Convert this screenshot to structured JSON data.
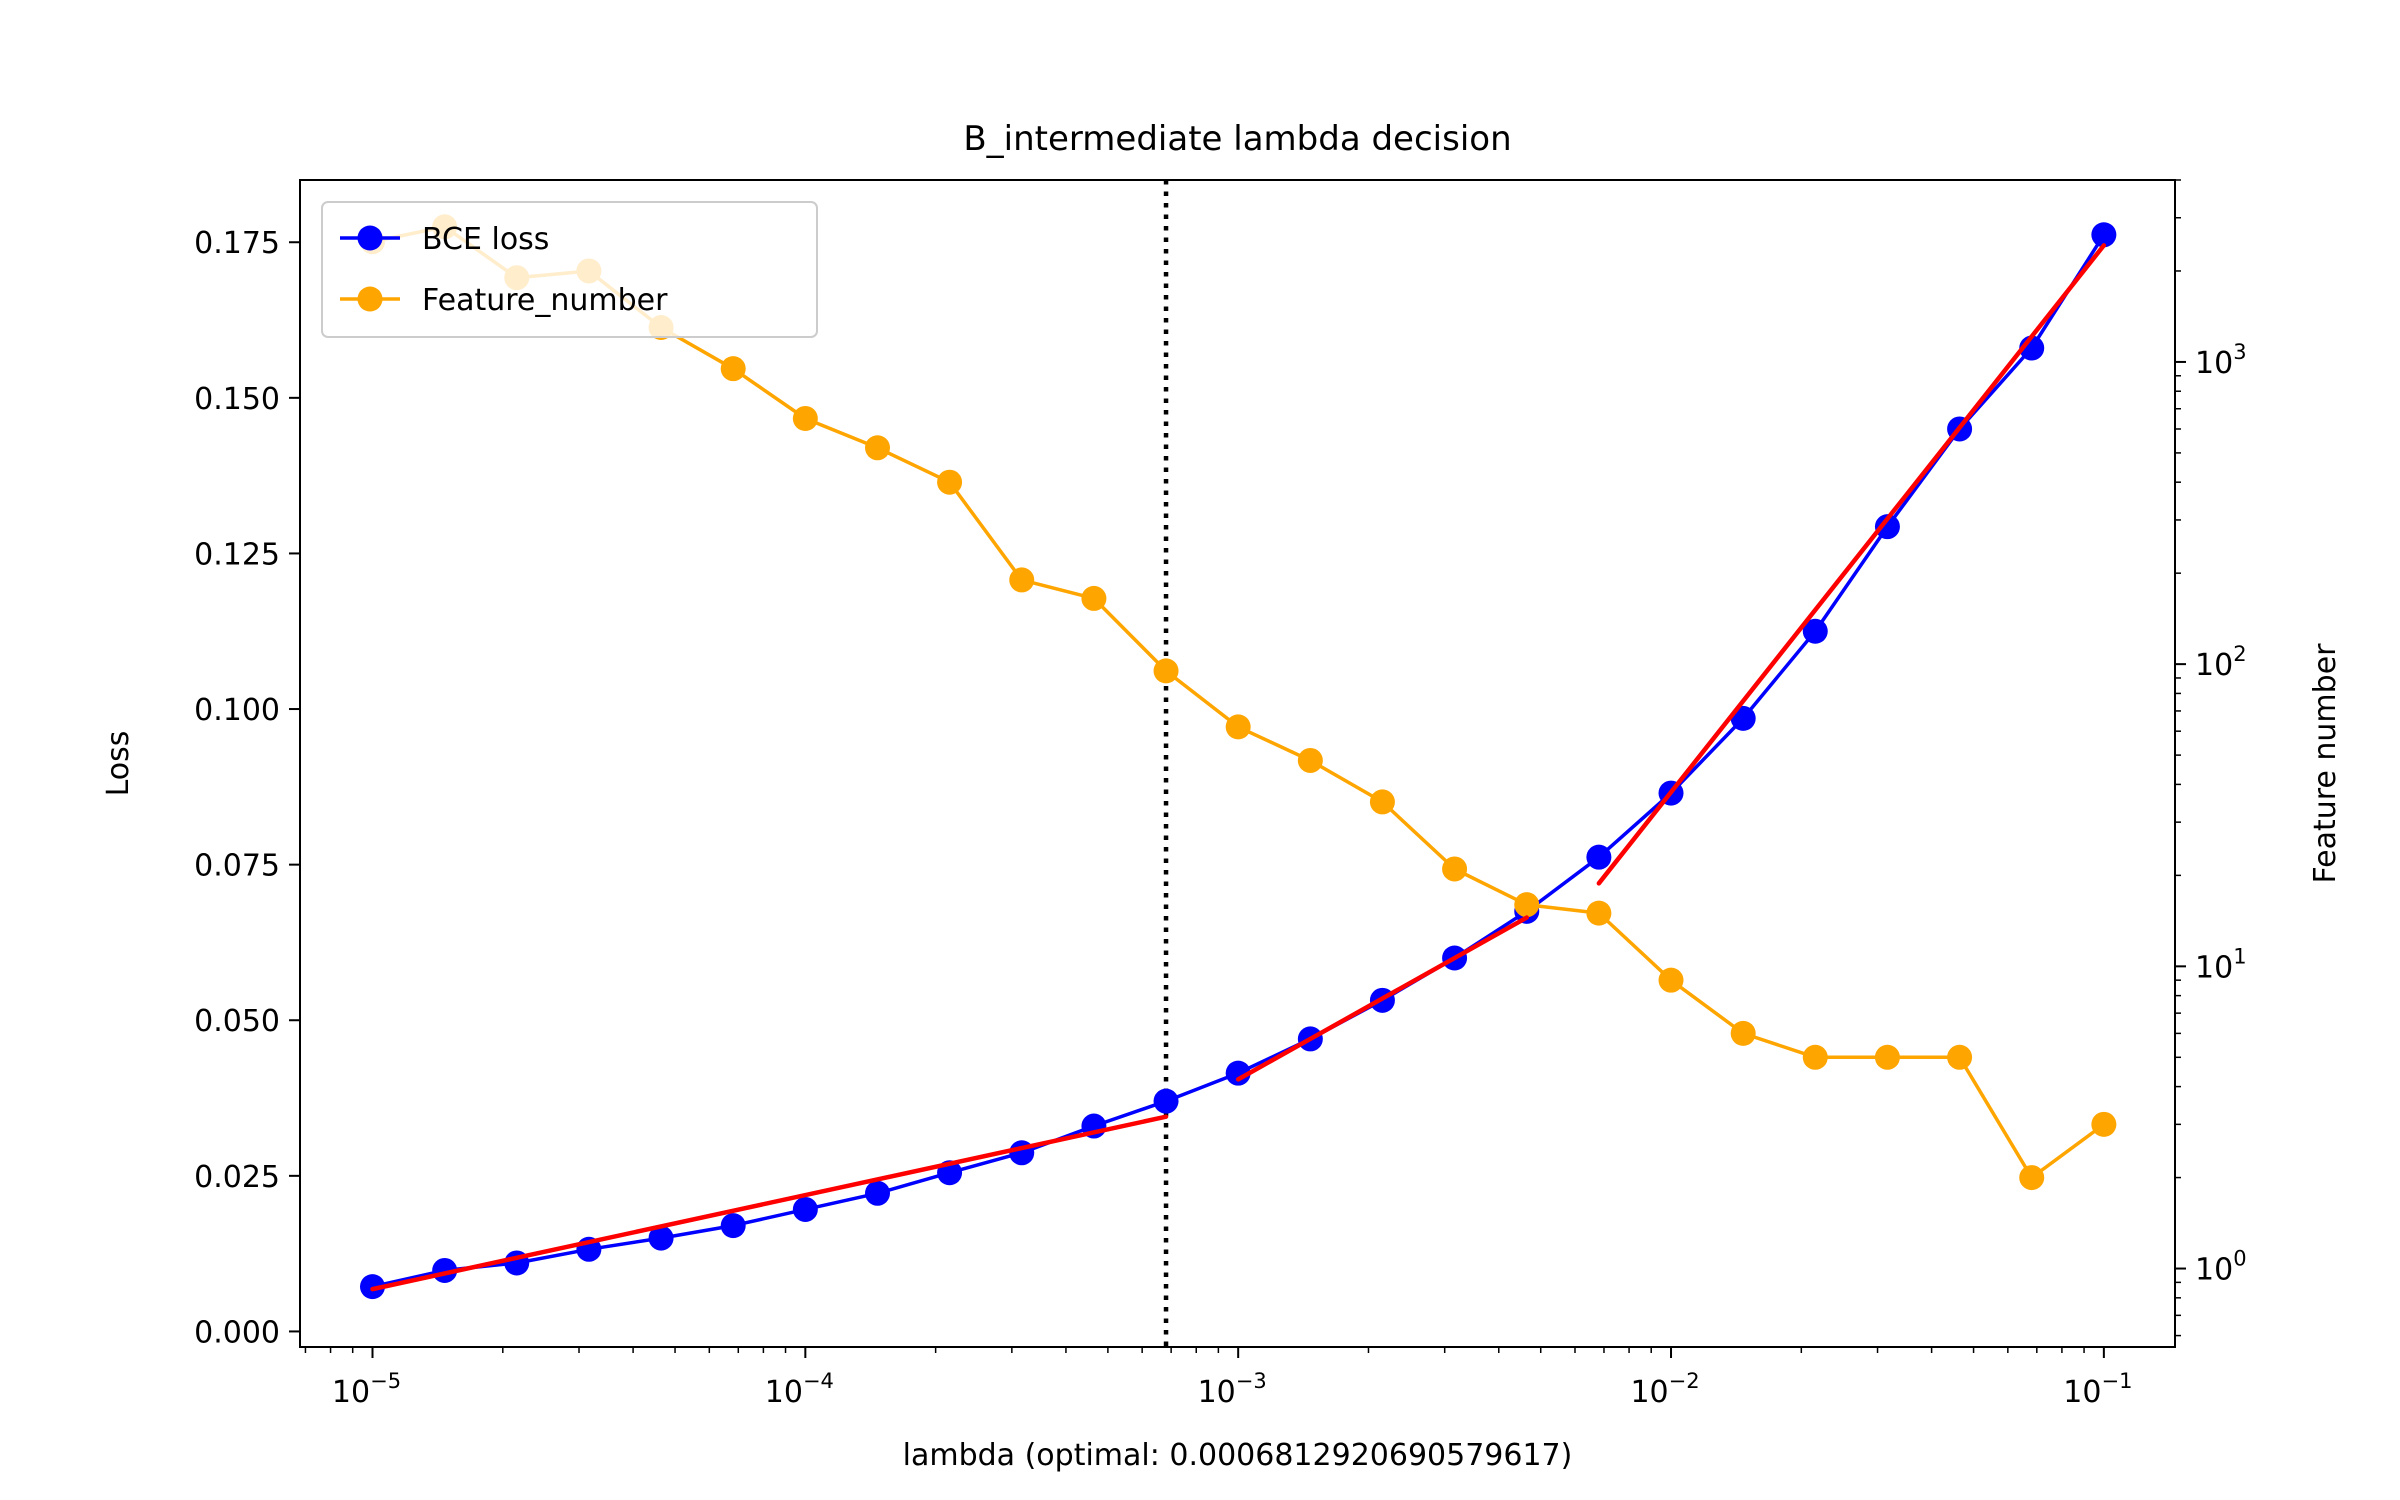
{
  "chart_data": {
    "type": "line",
    "title": "B_intermediate lambda decision",
    "xlabel": "lambda (optimal: 0.0006812920690579617)",
    "ylabel_left": "Loss",
    "ylabel_right": "Feature number",
    "x_scale": "log",
    "xlim": [
      6.8e-06,
      0.146
    ],
    "ylim_left": [
      -0.0025,
      0.185
    ],
    "ylim_right": [
      0.55,
      4000
    ],
    "y_right_scale": "log",
    "optimal_lambda": 0.0006812920690579617,
    "legend_position": "upper left",
    "x_ticks": [
      {
        "value": 1e-05,
        "base": "10",
        "exp": "−5"
      },
      {
        "value": 0.0001,
        "base": "10",
        "exp": "−4"
      },
      {
        "value": 0.001,
        "base": "10",
        "exp": "−3"
      },
      {
        "value": 0.01,
        "base": "10",
        "exp": "−2"
      },
      {
        "value": 0.1,
        "base": "10",
        "exp": "−1"
      }
    ],
    "y_left_ticks": [
      {
        "value": 0.0,
        "label": "0.000"
      },
      {
        "value": 0.025,
        "label": "0.025"
      },
      {
        "value": 0.05,
        "label": "0.050"
      },
      {
        "value": 0.075,
        "label": "0.075"
      },
      {
        "value": 0.1,
        "label": "0.100"
      },
      {
        "value": 0.125,
        "label": "0.125"
      },
      {
        "value": 0.15,
        "label": "0.150"
      },
      {
        "value": 0.175,
        "label": "0.175"
      }
    ],
    "y_right_ticks": [
      {
        "value": 1,
        "base": "10",
        "exp": "0"
      },
      {
        "value": 10,
        "base": "10",
        "exp": "1"
      },
      {
        "value": 100,
        "base": "10",
        "exp": "2"
      },
      {
        "value": 1000,
        "base": "10",
        "exp": "3"
      }
    ],
    "x": [
      1e-05,
      1.468e-05,
      2.154e-05,
      3.162e-05,
      4.642e-05,
      6.813e-05,
      0.0001,
      0.0001468,
      0.0002154,
      0.0003162,
      0.0004642,
      0.0006813,
      0.001,
      0.001468,
      0.002154,
      0.003162,
      0.004642,
      0.006813,
      0.01,
      0.01468,
      0.02154,
      0.03162,
      0.04642,
      0.06813,
      0.1
    ],
    "series": [
      {
        "name": "BCE loss",
        "axis": "left",
        "color": "#0000ff",
        "values": [
          0.0072,
          0.0098,
          0.011,
          0.0132,
          0.015,
          0.017,
          0.0196,
          0.0222,
          0.0255,
          0.0287,
          0.033,
          0.037,
          0.0415,
          0.047,
          0.0532,
          0.06,
          0.0675,
          0.0762,
          0.0865,
          0.0985,
          0.1125,
          0.1293,
          0.145,
          0.158,
          0.1762
        ]
      },
      {
        "name": "Feature_number",
        "axis": "right",
        "color": "#ffa500",
        "values": [
          2500,
          2800,
          1900,
          2000,
          1300,
          950,
          650,
          520,
          400,
          190,
          165,
          95,
          62,
          48,
          35,
          21,
          16,
          15,
          9,
          6,
          5,
          5,
          5,
          2,
          3
        ]
      }
    ],
    "fit_lines": {
      "color": "#ff0000",
      "segments": [
        {
          "x": [
            1e-05,
            0.0006813
          ],
          "y": [
            0.0068,
            0.0345
          ]
        },
        {
          "x": [
            0.001,
            0.004642
          ],
          "y": [
            0.0405,
            0.0665
          ]
        },
        {
          "x": [
            0.006813,
            0.1
          ],
          "y": [
            0.072,
            0.1745
          ]
        }
      ]
    }
  }
}
